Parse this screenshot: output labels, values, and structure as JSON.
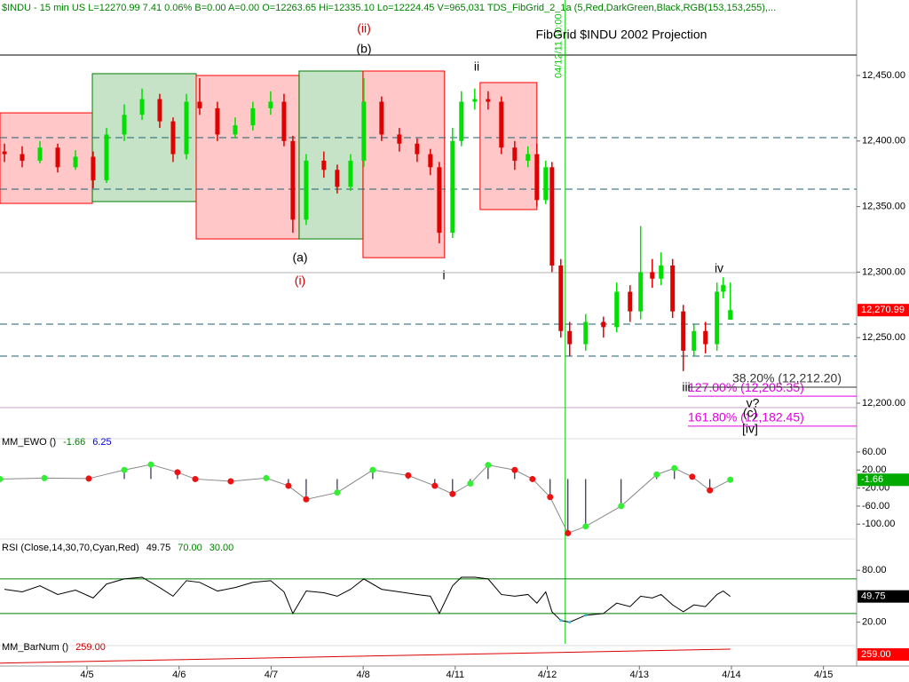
{
  "header": "$INDU - 15 min  US  L=12270.99  7.41  0.06%  B=0.00  A=0.00  O=12263.65  Hi=12335.10  Lo=12224.45  V=965,031  TDS_FibGrid_2_1a (5,Red,DarkGreen,Black,RGB(153,153,255),...",
  "header_color": "#008000",
  "chart_data": [
    {
      "type": "candlestick",
      "title": "FibGrid $INDU 2002 Projection",
      "x": [
        0.104,
        0.296,
        0.489,
        0.682,
        0.875,
        1.067,
        1.212,
        1.405,
        1.598,
        1.79,
        1.935,
        2.08,
        2.224,
        2.417,
        2.61,
        2.802,
        2.995,
        3.14,
        3.236,
        3.381,
        3.573,
        3.718,
        3.863,
        4.007,
        4.2,
        4.393,
        4.586,
        4.73,
        4.827,
        4.971,
        5.067,
        5.212,
        5.357,
        5.501,
        5.646,
        5.79,
        5.887,
        5.983,
        6.051,
        6.147,
        6.243,
        6.417,
        6.61,
        6.754,
        6.899,
        7.014,
        7.14,
        7.236,
        7.361,
        7.477,
        7.593,
        7.718,
        7.843,
        7.911,
        7.988
      ],
      "open": [
        12392,
        12390,
        12385,
        12395,
        12380,
        12388,
        12370,
        12405,
        12420,
        12432,
        12415,
        12390,
        12430,
        12425,
        12405,
        12412,
        12425,
        12430,
        12400,
        12340,
        12385,
        12378,
        12365,
        12385,
        12430,
        12405,
        12398,
        12390,
        12380,
        12330,
        12400,
        12430,
        12432,
        12430,
        12395,
        12385,
        12390,
        12355,
        12380,
        12305,
        12255,
        12245,
        12262,
        12258,
        12285,
        12270,
        12300,
        12295,
        12305,
        12270,
        12240,
        12255,
        12245,
        12285,
        12263.65
      ],
      "high": [
        12398,
        12396,
        12400,
        12398,
        12393,
        12392,
        12410,
        12428,
        12440,
        12436,
        12418,
        12436,
        12448,
        12430,
        12418,
        12430,
        12438,
        12436,
        12404,
        12390,
        12392,
        12382,
        12390,
        12448,
        12434,
        12410,
        12402,
        12394,
        12384,
        12410,
        12438,
        12440,
        12438,
        12434,
        12400,
        12396,
        12398,
        12385,
        12384,
        12310,
        12262,
        12268,
        12266,
        12292,
        12290,
        12335.1,
        12310,
        12315,
        12310,
        12275,
        12260,
        12262,
        12292,
        12296,
        12292
      ],
      "low": [
        12384,
        12380,
        12383,
        12376,
        12378,
        12364,
        12368,
        12400,
        12416,
        12410,
        12384,
        12386,
        12420,
        12400,
        12402,
        12408,
        12420,
        12396,
        12330,
        12336,
        12372,
        12360,
        12362,
        12380,
        12400,
        12392,
        12384,
        12374,
        12322,
        12326,
        12396,
        12424,
        12424,
        12390,
        12378,
        12380,
        12350,
        12352,
        12300,
        12250,
        12236,
        12240,
        12250,
        12254,
        12262,
        12264,
        12288,
        12290,
        12265,
        12224.45,
        12236,
        12238,
        12240,
        12280,
        12265
      ],
      "close": [
        12390,
        12385,
        12395,
        12380,
        12388,
        12370,
        12405,
        12420,
        12432,
        12415,
        12390,
        12430,
        12425,
        12405,
        12412,
        12425,
        12430,
        12400,
        12340,
        12385,
        12378,
        12365,
        12385,
        12430,
        12405,
        12398,
        12390,
        12380,
        12330,
        12400,
        12430,
        12432,
        12430,
        12395,
        12385,
        12390,
        12355,
        12380,
        12305,
        12255,
        12245,
        12262,
        12258,
        12285,
        12270,
        12300,
        12295,
        12305,
        12270,
        12240,
        12255,
        12245,
        12285,
        12290,
        12270.99
      ],
      "up_color": "#00e000",
      "down_color": "#e00000",
      "last_label": "12,270.99",
      "xlim": [
        0.055,
        9.36
      ],
      "xticks": [
        {
          "value": 1,
          "label": "4/5"
        },
        {
          "value": 2,
          "label": "4/6"
        },
        {
          "value": 3,
          "label": "4/7"
        },
        {
          "value": 4,
          "label": "4/8"
        },
        {
          "value": 5,
          "label": "4/11"
        },
        {
          "value": 6,
          "label": "4/12"
        },
        {
          "value": 7,
          "label": "4/13"
        },
        {
          "value": 8,
          "label": "4/14"
        },
        {
          "value": 9,
          "label": "4/15"
        }
      ],
      "ylim": [
        12175.6,
        12507.6
      ],
      "yticks": [
        {
          "value": 12200,
          "label": "12,200.00"
        },
        {
          "value": 12250,
          "label": "12,250.00"
        },
        {
          "value": 12300,
          "label": "12,300.00"
        },
        {
          "value": 12350,
          "label": "12,350.00"
        },
        {
          "value": 12400,
          "label": "12,400.00"
        },
        {
          "value": 12450,
          "label": "12,450.00"
        }
      ],
      "boxes": [
        {
          "x0": 0.055,
          "x1": 1.058,
          "high": 12421.5,
          "low": 12352.4,
          "color": "#ff0000"
        },
        {
          "x0": 1.058,
          "x1": 2.186,
          "high": 12451.4,
          "low": 12353.8,
          "color": "#008000"
        },
        {
          "x0": 2.186,
          "x1": 3.304,
          "high": 12450,
          "low": 12325.3,
          "color": "#ff0000"
        },
        {
          "x0": 3.304,
          "x1": 3.998,
          "high": 12453.4,
          "low": 12325.3,
          "color": "#008000"
        },
        {
          "x0": 3.998,
          "x1": 4.884,
          "high": 12453.4,
          "low": 12311,
          "color": "#ff0000"
        },
        {
          "x0": 5.27,
          "x1": 5.887,
          "high": 12444.6,
          "low": 12347.7,
          "color": "#ff0000"
        }
      ],
      "levels": [
        {
          "value": 12465.6,
          "color": "#000000",
          "dashed": false
        },
        {
          "value": 12402.6,
          "color": "#1f5f6f",
          "dashed": true
        },
        {
          "value": 12363.3,
          "color": "#1f5f6f",
          "dashed": true
        },
        {
          "value": 12299.6,
          "color": "#b0b0b0",
          "dashed": false
        },
        {
          "value": 12260.3,
          "color": "#1f5f6f",
          "dashed": true
        },
        {
          "value": 12235.9,
          "color": "#1f5f6f",
          "dashed": true
        },
        {
          "value": 12196.6,
          "color": "#c0a0c0",
          "dashed": false
        }
      ],
      "fib_levels": [
        {
          "label": "127.00% (12,205.35)",
          "value": 12205.35,
          "color": "#e000e0"
        },
        {
          "label": "38.20% (12,212.20)",
          "value": 12212.2,
          "color": "#333333"
        },
        {
          "label": "161.80% (12,182.45)",
          "value": 12182.45,
          "color": "#e000e0"
        }
      ],
      "marker": {
        "x": 6.195,
        "label": "04/12/11 10:00",
        "color": "#00cc00"
      },
      "annotations": [
        {
          "text": "(ii)",
          "color": "#cc0000"
        },
        {
          "text": "(b)",
          "color": "#000000"
        },
        {
          "text": "ii",
          "color": "#000000"
        },
        {
          "text": "(a)",
          "color": "#000000"
        },
        {
          "text": "(i)",
          "color": "#cc0000"
        },
        {
          "text": "i",
          "color": "#000000"
        },
        {
          "text": "iv",
          "color": "#000000"
        },
        {
          "text": "iii",
          "color": "#000000"
        },
        {
          "text": "v?",
          "color": "#000000"
        },
        {
          "text": "(c)",
          "color": "#000000"
        },
        {
          "text": "[iv]",
          "color": "#000000"
        }
      ]
    },
    {
      "type": "oscillator",
      "legend": [
        {
          "text": "MM_EWO ()",
          "color": "#000000"
        },
        {
          "text": "-1.66",
          "color": "#008000"
        },
        {
          "text": "6.25",
          "color": "#0000cc"
        }
      ],
      "x": [
        0.055,
        0.537,
        1.019,
        1.405,
        1.694,
        1.983,
        2.176,
        2.561,
        2.947,
        3.188,
        3.381,
        3.718,
        4.104,
        4.489,
        4.778,
        4.971,
        5.164,
        5.357,
        5.646,
        5.839,
        6.031,
        6.224,
        6.417,
        6.802,
        7.188,
        7.381,
        7.574,
        7.766,
        7.988
      ],
      "values": [
        0,
        2,
        1,
        20,
        32,
        15,
        0,
        -5,
        2,
        -15,
        -45,
        -30,
        20,
        8,
        -15,
        -33,
        -10,
        31,
        20,
        0,
        -40,
        -120,
        -105,
        -60,
        10,
        24,
        5,
        -25,
        -1.66
      ],
      "up_color": "#33ee33",
      "down_color": "#ee1111",
      "hist_color": "#000033",
      "last_label": "-1.66",
      "ylim": [
        -129,
        77.6
      ],
      "yticks": [
        {
          "value": 60,
          "label": "60.00"
        },
        {
          "value": 20,
          "label": "20.00"
        },
        {
          "value": -20,
          "label": "-20.00"
        },
        {
          "value": -60,
          "label": "-60.00"
        },
        {
          "value": -100,
          "label": "-100.00"
        }
      ]
    },
    {
      "type": "line",
      "legend": [
        {
          "text": "RSI (Close,14,30,70,Cyan,Red)",
          "color": "#000000"
        },
        {
          "text": "49.75",
          "color": "#000000"
        },
        {
          "text": "70.00",
          "color": "#008000"
        },
        {
          "text": "30.00",
          "color": "#008000"
        }
      ],
      "x": [
        0.104,
        0.296,
        0.489,
        0.682,
        0.875,
        1.067,
        1.212,
        1.405,
        1.598,
        1.79,
        1.935,
        2.08,
        2.224,
        2.417,
        2.61,
        2.802,
        2.995,
        3.14,
        3.236,
        3.381,
        3.573,
        3.718,
        3.863,
        4.007,
        4.2,
        4.393,
        4.586,
        4.73,
        4.827,
        4.971,
        5.067,
        5.212,
        5.357,
        5.501,
        5.646,
        5.79,
        5.887,
        5.983,
        6.051,
        6.147,
        6.243,
        6.417,
        6.61,
        6.754,
        6.899,
        7.014,
        7.14,
        7.236,
        7.361,
        7.477,
        7.593,
        7.718,
        7.843,
        7.911,
        7.988
      ],
      "values": [
        58,
        55,
        62,
        52,
        57,
        48,
        64,
        70,
        72,
        60,
        50,
        68,
        66,
        56,
        60,
        66,
        68,
        55,
        30,
        56,
        54,
        50,
        58,
        70,
        58,
        55,
        52,
        50,
        30,
        62,
        72,
        72,
        70,
        52,
        50,
        52,
        42,
        55,
        32,
        22,
        20,
        28,
        30,
        42,
        38,
        50,
        48,
        52,
        40,
        32,
        40,
        38,
        52,
        56,
        49.75
      ],
      "color": "#000000",
      "low_color": "#33bbdd",
      "levels": [
        70,
        30
      ],
      "level_color": "#008000",
      "last_label": "49.75",
      "ylim": [
        -5,
        113
      ],
      "yticks": [
        {
          "value": 80,
          "label": "80.00"
        },
        {
          "value": 20,
          "label": "20.00"
        }
      ]
    },
    {
      "type": "line",
      "legend": [
        {
          "text": "MM_BarNum ()",
          "color": "#000000"
        },
        {
          "text": "259.00",
          "color": "#cc0000"
        }
      ],
      "x": [
        0.055,
        7.988
      ],
      "values": [
        45,
        259
      ],
      "color": "#dd0000",
      "last_label": "259.00",
      "ylim": [
        0,
        300
      ]
    }
  ]
}
